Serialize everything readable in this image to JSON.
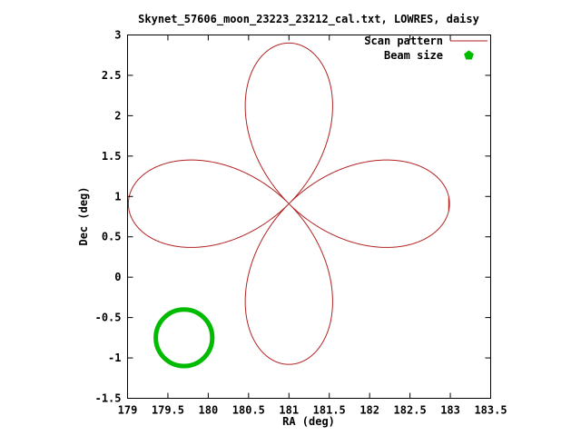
{
  "title": "Skynet_57606_moon_23223_23212_cal.txt, LOWRES, daisy",
  "chart_data": {
    "type": "line",
    "title": "Skynet_57606_moon_23223_23212_cal.txt, LOWRES, daisy",
    "xlabel": "RA (deg)",
    "ylabel": "Dec (deg)",
    "xlim": [
      179,
      183.5
    ],
    "ylim": [
      -1.5,
      3
    ],
    "xticks": [
      179,
      179.5,
      180,
      180.5,
      181,
      181.5,
      182,
      182.5,
      183,
      183.5
    ],
    "xtick_labels": [
      "179",
      "179.5",
      "180",
      "180.5",
      "181",
      "181.5",
      "182",
      "182.5",
      "183",
      "183.5"
    ],
    "yticks": [
      -1.5,
      -1,
      -0.5,
      0,
      0.5,
      1,
      1.5,
      2,
      2.5,
      3
    ],
    "ytick_labels": [
      "-1.5",
      "-1",
      "-0.5",
      "0",
      "0.5",
      "1",
      "1.5",
      "2",
      "2.5",
      "3"
    ],
    "grid": false,
    "legend_position": "top-right-inside",
    "series": [
      {
        "name": "Scan pattern",
        "shape": "rose-daisy",
        "petals": 4,
        "center": [
          181.0,
          0.91
        ],
        "petal_radius": 1.99,
        "color": "#b22222",
        "line_width": 1,
        "end_tick": {
          "x": 182.98,
          "y": [
            0.82,
            0.98
          ]
        }
      },
      {
        "name": "Beam size",
        "shape": "circle",
        "center": [
          179.7,
          -0.75
        ],
        "radius": 0.35,
        "color": "#00bb00",
        "line_width": 5,
        "marker": "filled-pentagon"
      }
    ],
    "background": "#ffffff",
    "frame_color": "#000000"
  }
}
